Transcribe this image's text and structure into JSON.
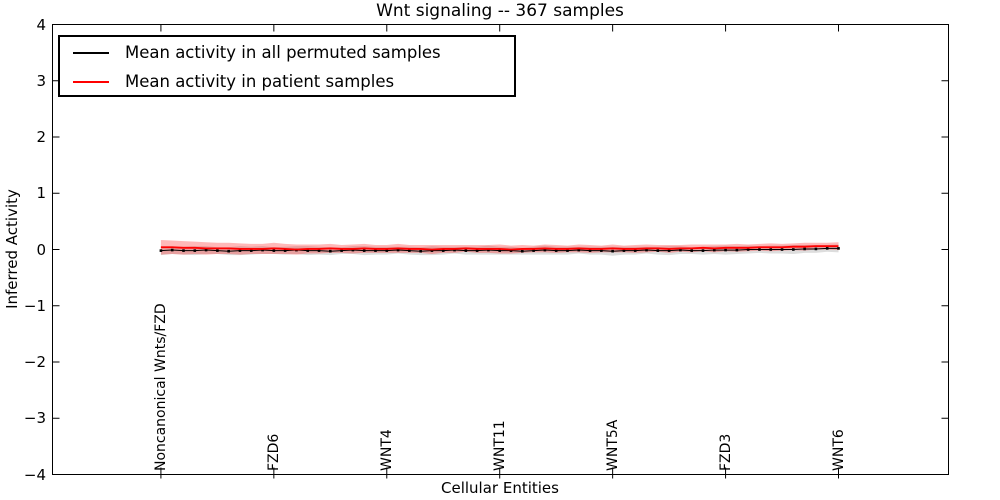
{
  "chart_data": {
    "type": "line",
    "title": "Wnt signaling -- 367 samples",
    "xlabel": "Cellular Entities",
    "ylabel": "Inferred Activity",
    "ylim": [
      -4,
      4
    ],
    "xlim": [
      -9.6,
      69.74
    ],
    "grid": false,
    "legend_position": "upper left",
    "yticks": [
      -4,
      -3,
      -2,
      -1,
      0,
      1,
      2,
      3,
      4
    ],
    "ytick_labels": [
      "−4",
      "−3",
      "−2",
      "−1",
      "0",
      "1",
      "2",
      "3",
      "4"
    ],
    "n_points": 61,
    "xtick_indices": [
      0,
      10,
      20,
      30,
      40,
      50,
      60
    ],
    "xtick_labels": [
      "Noncanonical Wnts/FZD",
      "FZD6",
      "WNT4",
      "WNT11",
      "WNT5A",
      "FZD3",
      "WNT6"
    ],
    "legend": [
      {
        "label": "Mean activity in all permuted samples",
        "color": "#000000"
      },
      {
        "label": "Mean activity in patient samples",
        "color": "#ff0000"
      }
    ],
    "colors": {
      "permuted_line": "#000000",
      "patient_line": "#ff0000",
      "permuted_band": "#aaaaaa",
      "patient_band": "#ff0000",
      "spine": "#000000"
    },
    "series": [
      {
        "name": "permuted_mean",
        "legend": "Mean activity in all permuted samples",
        "color": "#000000",
        "marker": "dot",
        "values": [
          -0.02,
          -0.01,
          -0.02,
          -0.02,
          -0.01,
          -0.02,
          -0.03,
          -0.02,
          -0.02,
          -0.01,
          -0.02,
          -0.02,
          -0.01,
          -0.02,
          -0.02,
          -0.03,
          -0.02,
          -0.01,
          -0.02,
          -0.02,
          -0.02,
          -0.01,
          -0.02,
          -0.03,
          -0.02,
          -0.02,
          -0.01,
          -0.02,
          -0.02,
          -0.01,
          -0.02,
          -0.02,
          -0.03,
          -0.02,
          -0.01,
          -0.02,
          -0.02,
          -0.01,
          -0.02,
          -0.02,
          -0.03,
          -0.02,
          -0.02,
          -0.01,
          -0.02,
          -0.02,
          -0.01,
          -0.02,
          -0.02,
          -0.01,
          -0.01,
          -0.01,
          0.0,
          0.0,
          0.0,
          0.0,
          0.0,
          0.01,
          0.01,
          0.02,
          0.02
        ]
      },
      {
        "name": "patient_mean",
        "legend": "Mean activity in patient samples",
        "color": "#ff0000",
        "marker": "none",
        "values": [
          0.04,
          0.04,
          0.03,
          0.03,
          0.02,
          0.02,
          0.02,
          0.01,
          0.01,
          0.01,
          0.02,
          0.01,
          0.0,
          0.01,
          0.01,
          0.02,
          0.01,
          0.01,
          0.02,
          0.01,
          0.01,
          0.02,
          0.01,
          0.01,
          0.0,
          0.01,
          0.01,
          0.02,
          0.01,
          0.01,
          0.01,
          0.0,
          0.01,
          0.01,
          0.02,
          0.01,
          0.01,
          0.02,
          0.01,
          0.01,
          0.02,
          0.01,
          0.01,
          0.02,
          0.02,
          0.01,
          0.02,
          0.02,
          0.03,
          0.02,
          0.03,
          0.03,
          0.03,
          0.04,
          0.04,
          0.04,
          0.05,
          0.05,
          0.06,
          0.06,
          0.06
        ]
      }
    ],
    "bands": [
      {
        "name": "permuted_std_band",
        "center": "permuted_mean",
        "color": "#aaaaaa",
        "opacity": 0.4,
        "half_widths": [
          0.08,
          0.07,
          0.07,
          0.08,
          0.07,
          0.06,
          0.07,
          0.08,
          0.07,
          0.07,
          0.06,
          0.07,
          0.07,
          0.08,
          0.07,
          0.07,
          0.06,
          0.07,
          0.08,
          0.07,
          0.07,
          0.06,
          0.07,
          0.07,
          0.08,
          0.07,
          0.06,
          0.07,
          0.07,
          0.08,
          0.07,
          0.07,
          0.06,
          0.07,
          0.08,
          0.07,
          0.07,
          0.06,
          0.07,
          0.07,
          0.08,
          0.07,
          0.07,
          0.06,
          0.07,
          0.08,
          0.07,
          0.06,
          0.07,
          0.07,
          0.08,
          0.07,
          0.07,
          0.06,
          0.07,
          0.07,
          0.08,
          0.07,
          0.07,
          0.06,
          0.07
        ]
      },
      {
        "name": "patient_std_band",
        "center": "patient_mean",
        "color": "#ff0000",
        "opacity": 0.28,
        "half_widths": [
          0.13,
          0.12,
          0.12,
          0.11,
          0.11,
          0.1,
          0.1,
          0.1,
          0.09,
          0.09,
          0.1,
          0.09,
          0.09,
          0.08,
          0.08,
          0.08,
          0.07,
          0.08,
          0.08,
          0.07,
          0.07,
          0.08,
          0.07,
          0.07,
          0.08,
          0.07,
          0.07,
          0.06,
          0.07,
          0.07,
          0.08,
          0.07,
          0.07,
          0.06,
          0.07,
          0.07,
          0.06,
          0.07,
          0.07,
          0.06,
          0.07,
          0.06,
          0.07,
          0.07,
          0.06,
          0.07,
          0.06,
          0.07,
          0.06,
          0.07,
          0.06,
          0.07,
          0.06,
          0.06,
          0.07,
          0.06,
          0.06,
          0.07,
          0.06,
          0.06,
          0.07
        ]
      }
    ]
  }
}
